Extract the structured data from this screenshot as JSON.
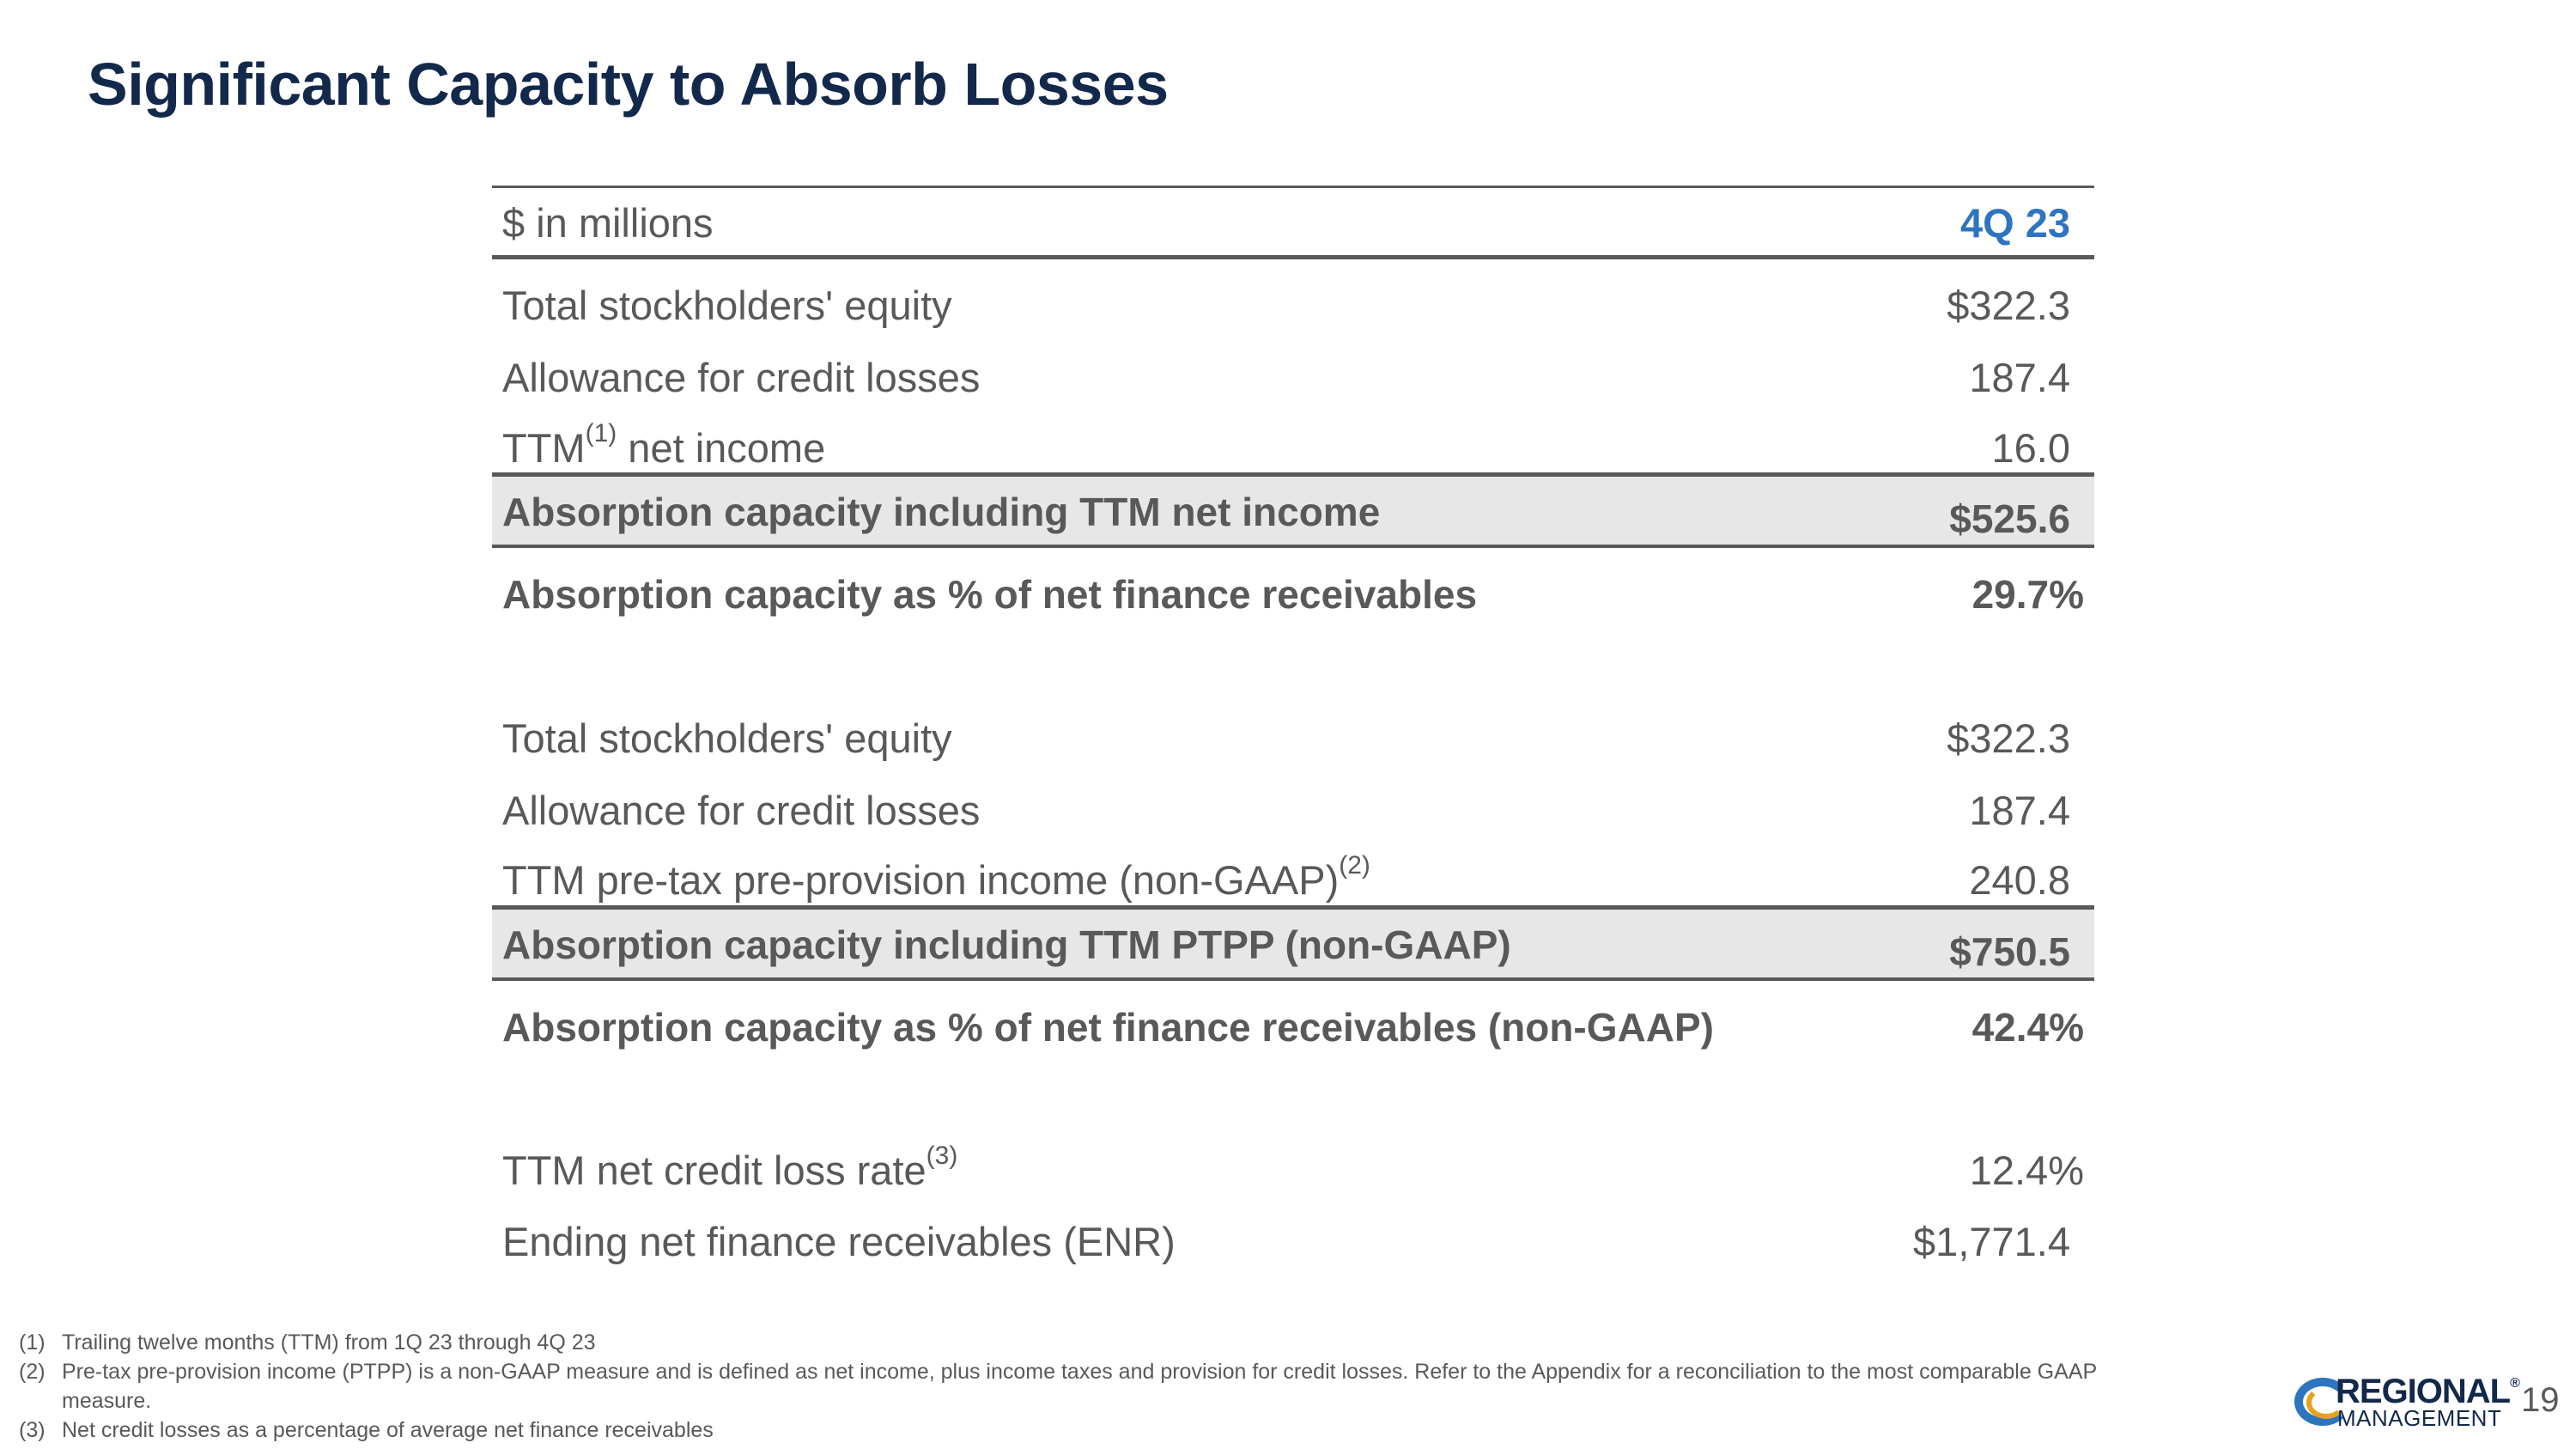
{
  "title": "Significant Capacity to Absorb Losses",
  "table": {
    "header": {
      "label": "$ in millions",
      "period": "4Q 23"
    },
    "section1": {
      "rows": [
        {
          "label": "Total stockholders' equity",
          "value": "$322.3"
        },
        {
          "label": "Allowance for credit losses",
          "value": "187.4"
        },
        {
          "label_pre": "TTM",
          "sup": "(1)",
          "label_post": " net income",
          "value": "16.0"
        }
      ],
      "total": {
        "label": "Absorption capacity including TTM net income",
        "value": "$525.6"
      },
      "pct": {
        "label": "Absorption capacity as % of net finance receivables",
        "value": "29.7%"
      }
    },
    "section2": {
      "rows": [
        {
          "label": "Total stockholders' equity",
          "value": "$322.3"
        },
        {
          "label": "Allowance for credit losses",
          "value": "187.4"
        },
        {
          "label_pre": "TTM pre-tax pre-provision income (non-GAAP)",
          "sup": "(2)",
          "value": "240.8"
        }
      ],
      "total": {
        "label": "Absorption capacity including TTM PTPP (non-GAAP)",
        "value": "$750.5"
      },
      "pct": {
        "label": "Absorption capacity as % of net finance receivables (non-GAAP)",
        "value": "42.4%"
      }
    },
    "section3": {
      "rows": [
        {
          "label_pre": "TTM net credit loss rate",
          "sup": "(3)",
          "value": "12.4%"
        },
        {
          "label": "Ending net finance receivables (ENR)",
          "value": "$1,771.4"
        }
      ]
    }
  },
  "footnotes": [
    {
      "num": "(1)",
      "text": "Trailing twelve months (TTM) from 1Q 23 through 4Q 23"
    },
    {
      "num": "(2)",
      "text": "Pre-tax pre-provision income (PTPP) is a non-GAAP measure and is defined as net income, plus income taxes and provision for credit losses. Refer to the Appendix for a reconciliation to the most comparable GAAP measure."
    },
    {
      "num": "(3)",
      "text": "Net credit losses as a percentage of average net finance receivables"
    }
  ],
  "logo": {
    "line1": "REGIONAL",
    "line2": "MANAGEMENT",
    "registered": "®"
  },
  "page_number": "19"
}
